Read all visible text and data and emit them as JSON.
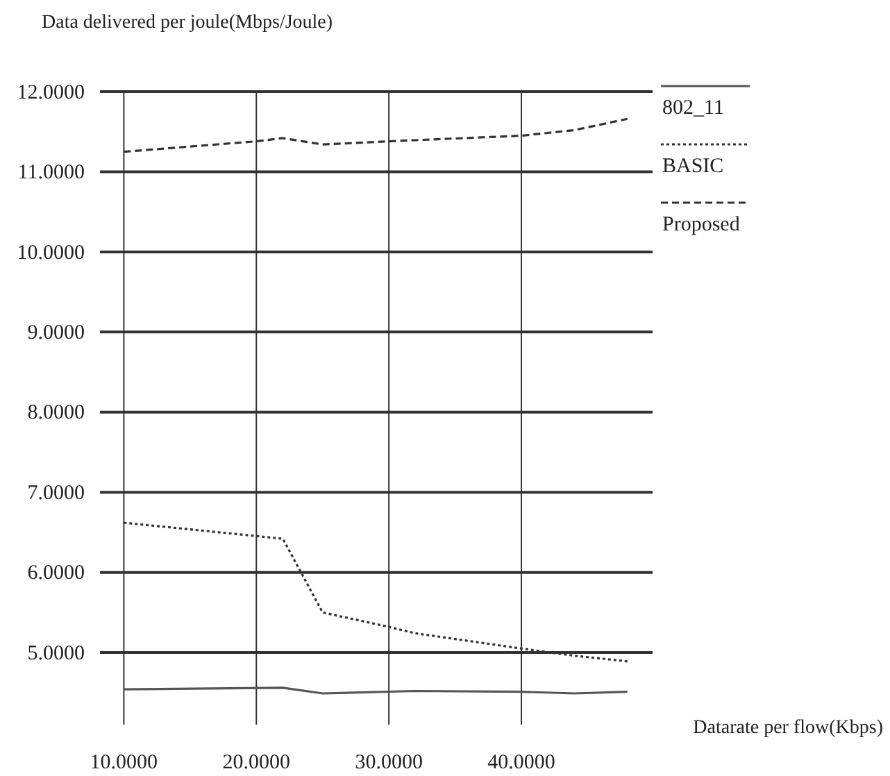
{
  "chart_data": {
    "type": "line",
    "ylabel": "Data delivered per joule(Mbps/Joule)",
    "xlabel": "Datarate per flow(Kbps)",
    "xlim": [
      8.2,
      49.9
    ],
    "ylim": [
      4.1,
      12
    ],
    "xticks": [
      {
        "value": 10,
        "label": "10.0000"
      },
      {
        "value": 20,
        "label": "20.0000"
      },
      {
        "value": 30,
        "label": "30.0000"
      },
      {
        "value": 40,
        "label": "40.0000"
      }
    ],
    "yticks": [
      {
        "value": 5,
        "label": "5.0000"
      },
      {
        "value": 6,
        "label": "6.0000"
      },
      {
        "value": 7,
        "label": "7.0000"
      },
      {
        "value": 8,
        "label": "8.0000"
      },
      {
        "value": 9,
        "label": "9.0000"
      },
      {
        "value": 10,
        "label": "10.0000"
      },
      {
        "value": 11,
        "label": "11.0000"
      },
      {
        "value": 12,
        "label": "12.0000"
      }
    ],
    "grid": true,
    "legend": "right",
    "series": [
      {
        "name": "802_11",
        "color": "#555555",
        "line_style": "solid",
        "x": [
          10,
          22,
          25,
          32,
          40,
          44,
          48
        ],
        "values": [
          4.54,
          4.56,
          4.49,
          4.52,
          4.51,
          4.49,
          4.51
        ]
      },
      {
        "name": "BASIC",
        "color": "#333333",
        "line_style": "dotted",
        "x": [
          10,
          22,
          25,
          30,
          32,
          40,
          44,
          48
        ],
        "values": [
          6.62,
          6.42,
          5.5,
          5.32,
          5.24,
          5.05,
          4.96,
          4.89
        ]
      },
      {
        "name": "Proposed",
        "color": "#333333",
        "line_style": "dashed",
        "x": [
          10,
          20,
          22,
          25,
          30,
          40,
          44,
          48
        ],
        "values": [
          11.25,
          11.38,
          11.42,
          11.34,
          11.38,
          11.45,
          11.52,
          11.66
        ]
      }
    ]
  }
}
